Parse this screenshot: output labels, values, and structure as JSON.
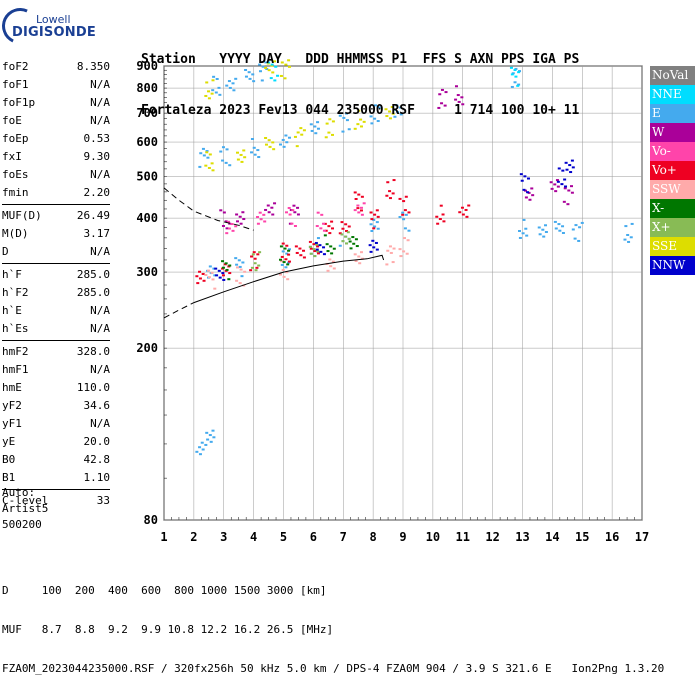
{
  "logo": {
    "brand": "Lowell",
    "name": "DIGISONDE"
  },
  "header": {
    "line1": "Station   YYYY DAY   DDD HHMMSS P1  FFS S AXN PPS IGA PS",
    "line2": "Fortaleza 2023 Fev13 044 235000 RSF     1 714 100 10+ 11"
  },
  "params": {
    "group1": [
      {
        "label": "foF2",
        "value": "8.350"
      },
      {
        "label": "foF1",
        "value": "N/A"
      },
      {
        "label": "foF1p",
        "value": "N/A"
      },
      {
        "label": "foE",
        "value": "N/A"
      },
      {
        "label": "foEp",
        "value": "0.53"
      },
      {
        "label": "fxI",
        "value": "9.30"
      },
      {
        "label": "foEs",
        "value": "N/A"
      },
      {
        "label": "fmin",
        "value": "2.20"
      }
    ],
    "group2": [
      {
        "label": "MUF(D)",
        "value": "26.49"
      },
      {
        "label": "M(D)",
        "value": "3.17"
      },
      {
        "label": "D",
        "value": "N/A"
      }
    ],
    "group3": [
      {
        "label": "h`F",
        "value": "285.0"
      },
      {
        "label": "h`F2",
        "value": "285.0"
      },
      {
        "label": "h`E",
        "value": "N/A"
      },
      {
        "label": "h`Es",
        "value": "N/A"
      }
    ],
    "group4": [
      {
        "label": "hmF2",
        "value": "328.0"
      },
      {
        "label": "hmF1",
        "value": "N/A"
      },
      {
        "label": "hmE",
        "value": "110.0"
      },
      {
        "label": "yF2",
        "value": "34.6"
      },
      {
        "label": "yF1",
        "value": "N/A"
      },
      {
        "label": "yE",
        "value": "20.0"
      },
      {
        "label": "B0",
        "value": "42.8"
      },
      {
        "label": "B1",
        "value": "1.10"
      }
    ],
    "group5": [
      {
        "label": "C-level",
        "value": "33"
      }
    ]
  },
  "auto": {
    "line1": "Auto:",
    "line2": "Artist5",
    "line3": "500200"
  },
  "legend": [
    {
      "label": "NoVal",
      "bg": "#808080",
      "fg": "#ffffff"
    },
    {
      "label": "NNE",
      "bg": "#00ddff",
      "fg": "#ffffff"
    },
    {
      "label": "E",
      "bg": "#44aaee",
      "fg": "#ffffff"
    },
    {
      "label": "W",
      "bg": "#aa0099",
      "fg": "#ffffff"
    },
    {
      "label": "Vo-",
      "bg": "#ff44aa",
      "fg": "#ffffff"
    },
    {
      "label": "Vo+",
      "bg": "#ee0022",
      "fg": "#ffffff"
    },
    {
      "label": "SSW",
      "bg": "#ffaaaa",
      "fg": "#ffffff"
    },
    {
      "label": "X-",
      "bg": "#007700",
      "fg": "#ffffff"
    },
    {
      "label": "X+",
      "bg": "#88bb55",
      "fg": "#ffffff"
    },
    {
      "label": "SSE",
      "bg": "#dddd00",
      "fg": "#ffffff"
    },
    {
      "label": "NNW",
      "bg": "#0000cc",
      "fg": "#ffffff"
    }
  ],
  "footer": {
    "line1": "D     100  200  400  600  800 1000 1500 3000 [km]",
    "line2": "MUF   8.7  8.8  9.2  9.9 10.8 12.2 16.2 26.5 [MHz]",
    "line3": "FZA0M_2023044235000.RSF / 320fx256h 50 kHz 5.0 km / DPS-4 FZA0M 904 / 3.9 S 321.6 E   Ion2Png 1.3.20"
  },
  "chart_data": {
    "type": "scatter",
    "xlim": [
      1,
      17
    ],
    "ylim": [
      80,
      900
    ],
    "y_scale": "log",
    "x_ticks": [
      1,
      2,
      3,
      4,
      5,
      6,
      7,
      8,
      9,
      10,
      11,
      12,
      13,
      14,
      15,
      16,
      17
    ],
    "y_ticks": [
      80,
      200,
      300,
      400,
      500,
      600,
      700,
      800,
      900
    ],
    "grid": true,
    "series": [
      {
        "name": "E",
        "color": "#44aaee",
        "points": [
          [
            2.3,
            555
          ],
          [
            3,
            560
          ],
          [
            4,
            585
          ],
          [
            5,
            610
          ],
          [
            6,
            640
          ],
          [
            7,
            670
          ],
          [
            8,
            700
          ],
          [
            8.8,
            725
          ],
          [
            2.5,
            300
          ],
          [
            3.5,
            310
          ],
          [
            5,
            325
          ],
          [
            6,
            345
          ],
          [
            7,
            360
          ],
          [
            8,
            380
          ],
          [
            9,
            395
          ],
          [
            2.7,
            815
          ],
          [
            3.2,
            835
          ],
          [
            3.8,
            855
          ],
          [
            4.3,
            880
          ],
          [
            12.7,
            850
          ],
          [
            13,
            380
          ],
          [
            13.6,
            378
          ],
          [
            14.2,
            376
          ],
          [
            14.8,
            374
          ],
          [
            16.5,
            372
          ],
          [
            2.2,
            120
          ],
          [
            2.5,
            125
          ]
        ]
      },
      {
        "name": "SSE",
        "color": "#dddd00",
        "points": [
          [
            2.5,
            545
          ],
          [
            3.5,
            570
          ],
          [
            4.5,
            595
          ],
          [
            5.5,
            620
          ],
          [
            6.5,
            650
          ],
          [
            7.5,
            680
          ],
          [
            8.5,
            710
          ],
          [
            4.5,
            885
          ],
          [
            5,
            890
          ],
          [
            2.5,
            800
          ]
        ]
      },
      {
        "name": "Vo+",
        "color": "#ee0022",
        "points": [
          [
            2.2,
            295
          ],
          [
            3,
            300
          ],
          [
            4,
            320
          ],
          [
            5,
            335
          ],
          [
            6,
            350
          ],
          [
            7,
            380
          ],
          [
            8,
            400
          ],
          [
            9,
            430
          ],
          [
            10.2,
            410
          ],
          [
            11,
            420
          ],
          [
            5.5,
            330
          ],
          [
            7.5,
            440
          ],
          [
            8.5,
            470
          ],
          [
            6.5,
            390
          ]
        ]
      },
      {
        "name": "SSW",
        "color": "#ffaaaa",
        "points": [
          [
            2.5,
            290
          ],
          [
            3.5,
            295
          ],
          [
            5,
            305
          ],
          [
            6.5,
            315
          ],
          [
            7.5,
            320
          ],
          [
            8.5,
            330
          ],
          [
            9,
            345
          ]
        ]
      },
      {
        "name": "W",
        "color": "#aa0099",
        "points": [
          [
            3,
            400
          ],
          [
            3.5,
            410
          ],
          [
            4.5,
            420
          ],
          [
            5.3,
            410
          ],
          [
            10.3,
            760
          ],
          [
            10.8,
            775
          ],
          [
            13.2,
            460
          ],
          [
            14,
            470
          ],
          [
            14.5,
            455
          ]
        ]
      },
      {
        "name": "Vo-",
        "color": "#ff44aa",
        "points": [
          [
            3.2,
            385
          ],
          [
            4.2,
            395
          ],
          [
            5.2,
            405
          ],
          [
            6.2,
            395
          ],
          [
            7.5,
            430
          ]
        ]
      },
      {
        "name": "X-",
        "color": "#007700",
        "points": [
          [
            3,
            305
          ],
          [
            5,
            330
          ],
          [
            6.5,
            350
          ],
          [
            7.3,
            355
          ]
        ]
      },
      {
        "name": "X+",
        "color": "#88bb55",
        "points": [
          [
            4,
            320
          ],
          [
            6,
            345
          ],
          [
            7,
            360
          ]
        ]
      },
      {
        "name": "NNW",
        "color": "#0000cc",
        "points": [
          [
            2.8,
            300
          ],
          [
            8,
            340
          ],
          [
            13,
            485
          ],
          [
            14.3,
            500
          ],
          [
            14.5,
            540
          ],
          [
            6.2,
            340
          ]
        ]
      },
      {
        "name": "NNE",
        "color": "#00ddff",
        "points": [
          [
            12.7,
            855
          ],
          [
            4.6,
            880
          ]
        ]
      }
    ],
    "profile_solid": [
      [
        2,
        255
      ],
      [
        3,
        270
      ],
      [
        4,
        285
      ],
      [
        5,
        300
      ],
      [
        6,
        310
      ],
      [
        7,
        318
      ],
      [
        7.8,
        322
      ],
      [
        8.3,
        328
      ],
      [
        8.35,
        320
      ]
    ],
    "profile_dashed_top": [
      [
        1,
        470
      ],
      [
        1.5,
        440
      ],
      [
        2,
        415
      ],
      [
        2.8,
        395
      ],
      [
        3.5,
        385
      ],
      [
        4,
        375
      ]
    ],
    "profile_dashed_bottom": [
      [
        1,
        235
      ],
      [
        1.5,
        245
      ],
      [
        2,
        255
      ]
    ]
  }
}
